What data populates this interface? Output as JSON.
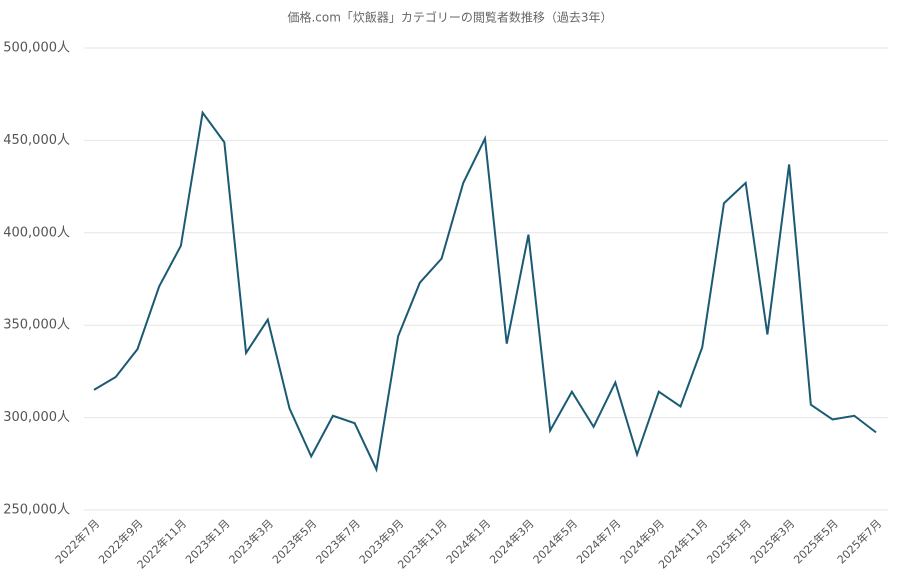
{
  "chart_data": {
    "type": "line",
    "title": "価格.com「炊飯器」カテゴリーの閲覧者数推移（過去3年）",
    "categories": [
      "2022年7月",
      null,
      "2022年9月",
      null,
      "2022年11月",
      null,
      "2023年1月",
      null,
      "2023年3月",
      null,
      "2023年5月",
      null,
      "2023年7月",
      null,
      "2023年9月",
      null,
      "2023年11月",
      null,
      "2024年1月",
      null,
      "2024年3月",
      null,
      "2024年5月",
      null,
      "2024年7月",
      null,
      "2024年9月",
      null,
      "2024年11月",
      null,
      "2025年1月",
      null,
      "2025年3月",
      null,
      "2025年5月",
      null,
      "2025年7月"
    ],
    "series": [
      {
        "name": "閲覧者数",
        "color": "#1b5a74",
        "values": [
          315000,
          322000,
          337000,
          371000,
          393000,
          465000,
          449000,
          335000,
          353000,
          305000,
          279000,
          301000,
          297000,
          272000,
          344000,
          373000,
          386000,
          427000,
          451000,
          340000,
          399000,
          293000,
          314000,
          295000,
          319000,
          280000,
          314000,
          306000,
          338000,
          416000,
          427000,
          345000,
          437000,
          307000,
          299000,
          301000,
          292000
        ]
      }
    ],
    "ylim": [
      250000,
      500000
    ],
    "yticks": [
      {
        "value": 250000,
        "label": "250,000人"
      },
      {
        "value": 300000,
        "label": "300,000人"
      },
      {
        "value": 350000,
        "label": "350,000人"
      },
      {
        "value": 400000,
        "label": "400,000人"
      },
      {
        "value": 450000,
        "label": "450,000人"
      },
      {
        "value": 500000,
        "label": "500,000人"
      }
    ],
    "grid": true
  }
}
